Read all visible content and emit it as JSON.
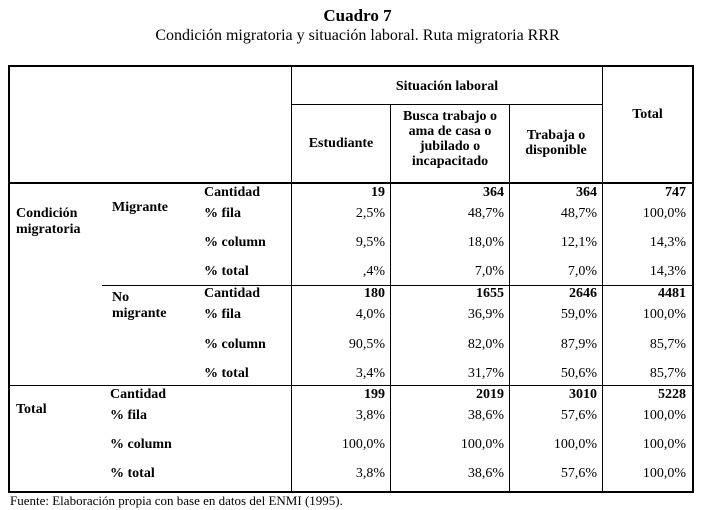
{
  "caption": {
    "title": "Cuadro 7",
    "subtitle": "Condición migratoria y situación laboral. Ruta migratoria RRR"
  },
  "header": {
    "group": "Situación laboral",
    "col1": "Estudiante",
    "col2": "Busca trabajo o ama de casa o jubilado o incapacitado",
    "col3": "Trabaja o disponible",
    "total": "Total"
  },
  "stub": {
    "condicion": "Condición migratoria",
    "migrante": "Migrante",
    "no_migrante": "No migrante",
    "total": "Total"
  },
  "rows": [
    {
      "label": "Cantidad",
      "c1": "19",
      "c2": "364",
      "c3": "364",
      "tot": "747"
    },
    {
      "label": "% fila",
      "c1": "2,5%",
      "c2": "48,7%",
      "c3": "48,7%",
      "tot": "100,0%"
    },
    {
      "label": "% column",
      "c1": "9,5%",
      "c2": "18,0%",
      "c3": "12,1%",
      "tot": "14,3%"
    },
    {
      "label": "% total",
      "c1": ",4%",
      "c2": "7,0%",
      "c3": "7,0%",
      "tot": "14,3%"
    },
    {
      "label": "Cantidad",
      "c1": "180",
      "c2": "1655",
      "c3": "2646",
      "tot": "4481"
    },
    {
      "label": "% fila",
      "c1": "4,0%",
      "c2": "36,9%",
      "c3": "59,0%",
      "tot": "100,0%"
    },
    {
      "label": "% column",
      "c1": "90,5%",
      "c2": "82,0%",
      "c3": "87,9%",
      "tot": "85,7%"
    },
    {
      "label": "% total",
      "c1": "3,4%",
      "c2": "31,7%",
      "c3": "50,6%",
      "tot": "85,7%"
    },
    {
      "label": "Cantidad",
      "c1": "199",
      "c2": "2019",
      "c3": "3010",
      "tot": "5228"
    },
    {
      "label": "% fila",
      "c1": "3,8%",
      "c2": "38,6%",
      "c3": "57,6%",
      "tot": "100,0%"
    },
    {
      "label": "% column",
      "c1": "100,0%",
      "c2": "100,0%",
      "c3": "100,0%",
      "tot": "100,0%"
    },
    {
      "label": "% total",
      "c1": "3,8%",
      "c2": "38,6%",
      "c3": "57,6%",
      "tot": "100,0%"
    }
  ],
  "source": "Fuente: Elaboración propia con base en datos del ENMI (1995)."
}
